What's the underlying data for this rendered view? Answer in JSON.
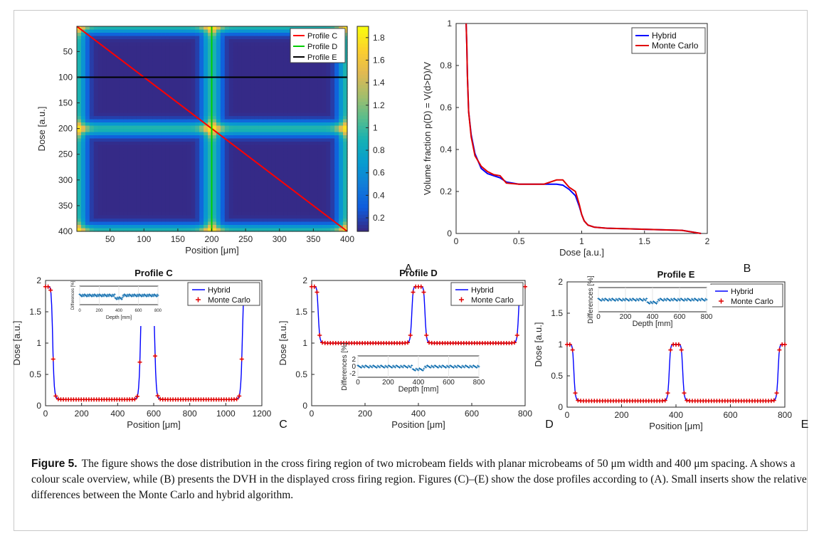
{
  "figure": {
    "label": "Figure 5.",
    "caption": "The figure shows the dose distribution in the cross firing region of two microbeam fields with planar microbeams of 50 μm width and 400 μm spacing. A shows a colour scale overview, while (B) presents the DVH in the displayed cross firing region. Figures (C)–(E) show the dose profiles according to (A). Small inserts show the relative differences between the Monte Carlo and hybrid algorithm."
  },
  "colors": {
    "hybrid": "#0000ff",
    "montecarlo": "#e00000",
    "profileC": "#ff0000",
    "profileD": "#00cc00",
    "profileE": "#000000",
    "insert": "#1f77b4"
  },
  "chart_data": [
    {
      "id": "A",
      "panel_letter": "A",
      "type": "heatmap",
      "xlabel": "Position [μm]",
      "ylabel": "Dose [a.u.]",
      "xlim": [
        1,
        400
      ],
      "ylim": [
        1,
        400
      ],
      "xticks": [
        50,
        100,
        150,
        200,
        250,
        300,
        350,
        400
      ],
      "yticks": [
        50,
        100,
        150,
        200,
        250,
        300,
        350,
        400
      ],
      "colorbar": {
        "range": [
          0.08,
          1.9
        ],
        "ticks": [
          0.2,
          0.4,
          0.6,
          0.8,
          1,
          1.2,
          1.4,
          1.6,
          1.8
        ]
      },
      "beam_centers_x": [
        1,
        200,
        400
      ],
      "beam_centers_y": [
        1,
        200,
        400
      ],
      "legend": [
        "Profile C",
        "Profile D",
        "Profile E"
      ],
      "legend_position": "top-right",
      "lines": [
        {
          "name": "Profile C",
          "color": "#ff0000",
          "x": [
            1,
            400
          ],
          "y": [
            1,
            400
          ]
        },
        {
          "name": "Profile D",
          "color": "#00cc00",
          "x": [
            200,
            200
          ],
          "y": [
            1,
            400
          ]
        },
        {
          "name": "Profile E",
          "color": "#000000",
          "x": [
            1,
            400
          ],
          "y": [
            100,
            100
          ]
        }
      ]
    },
    {
      "id": "B",
      "panel_letter": "B",
      "type": "line",
      "xlabel": "Dose [a.u.]",
      "ylabel": "Volume fraction p(D) = V(d>D)/V",
      "xlim": [
        0,
        2
      ],
      "ylim": [
        0,
        1
      ],
      "xticks": [
        0,
        0.5,
        1,
        1.5,
        2
      ],
      "yticks": [
        0,
        0.2,
        0.4,
        0.6,
        0.8,
        1
      ],
      "legend_position": "top-right",
      "series": [
        {
          "name": "Hybrid",
          "color": "#0000ff",
          "x": [
            0.08,
            0.085,
            0.09,
            0.1,
            0.12,
            0.15,
            0.2,
            0.25,
            0.3,
            0.35,
            0.4,
            0.5,
            0.6,
            0.7,
            0.8,
            0.85,
            0.9,
            0.95,
            0.98,
            1.0,
            1.02,
            1.05,
            1.1,
            1.2,
            1.5,
            1.8,
            1.95
          ],
          "y": [
            1.0,
            0.9,
            0.75,
            0.58,
            0.47,
            0.38,
            0.31,
            0.285,
            0.275,
            0.265,
            0.245,
            0.235,
            0.235,
            0.235,
            0.235,
            0.23,
            0.21,
            0.18,
            0.13,
            0.09,
            0.06,
            0.04,
            0.03,
            0.025,
            0.02,
            0.015,
            0.0
          ]
        },
        {
          "name": "Monte Carlo",
          "color": "#e00000",
          "x": [
            0.08,
            0.085,
            0.09,
            0.1,
            0.12,
            0.15,
            0.2,
            0.25,
            0.3,
            0.35,
            0.4,
            0.5,
            0.6,
            0.7,
            0.8,
            0.85,
            0.9,
            0.95,
            0.98,
            1.0,
            1.02,
            1.05,
            1.1,
            1.2,
            1.5,
            1.8,
            1.95
          ],
          "y": [
            1.0,
            0.9,
            0.75,
            0.58,
            0.46,
            0.37,
            0.32,
            0.295,
            0.28,
            0.275,
            0.24,
            0.235,
            0.235,
            0.235,
            0.255,
            0.255,
            0.22,
            0.2,
            0.14,
            0.09,
            0.06,
            0.04,
            0.03,
            0.025,
            0.02,
            0.015,
            0.0
          ]
        }
      ],
      "legend": [
        "Hybrid",
        "Monte Carlo"
      ]
    },
    {
      "id": "C",
      "panel_letter": "C",
      "type": "line",
      "title": "Profile C",
      "xlabel": "Position [μm]",
      "ylabel": "Dose [a.u.]",
      "xlim": [
        0,
        1200
      ],
      "ylim": [
        0,
        2
      ],
      "xticks": [
        0,
        200,
        400,
        600,
        800,
        1000,
        1200
      ],
      "yticks": [
        0,
        0.5,
        1,
        1.5,
        2
      ],
      "legend": [
        "Hybrid",
        "Monte Carlo"
      ],
      "legend_position": "top-right",
      "profile": {
        "peaks": [
          {
            "c": 0,
            "w": 80,
            "h": 1.9
          },
          {
            "c": 566,
            "w": 80,
            "h": 1.9
          },
          {
            "c": 1131,
            "w": 80,
            "h": 1.9
          }
        ],
        "valley": 0.1,
        "xmax": 1131
      },
      "inset": {
        "xlabel": "Depth [mm]",
        "ylabel": "Differences [%]",
        "xlim": [
          0,
          800
        ],
        "xticks": [
          0,
          200,
          400,
          600,
          800
        ],
        "ylim": [
          -2,
          2
        ]
      }
    },
    {
      "id": "D",
      "panel_letter": "D",
      "type": "line",
      "title": "Profile D",
      "xlabel": "Position [μm]",
      "ylabel": "Dose [a.u.]",
      "xlim": [
        0,
        800
      ],
      "ylim": [
        0,
        2
      ],
      "xticks": [
        0,
        200,
        400,
        600,
        800
      ],
      "yticks": [
        0,
        0.5,
        1,
        1.5,
        2
      ],
      "legend": [
        "Hybrid",
        "Monte Carlo"
      ],
      "legend_position": "top-right",
      "profile": {
        "peaks": [
          {
            "c": 0,
            "w": 50,
            "h": 1.9
          },
          {
            "c": 400,
            "w": 50,
            "h": 1.9
          },
          {
            "c": 800,
            "w": 50,
            "h": 1.9
          }
        ],
        "valley": 1.0,
        "xmax": 800
      },
      "inset": {
        "xlabel": "Depth [mm]",
        "ylabel": "Differences [%]",
        "xlim": [
          0,
          800
        ],
        "xticks": [
          0,
          200,
          400,
          600,
          800
        ],
        "ylim": [
          -3,
          3
        ],
        "yticks": [
          -2,
          0,
          2
        ]
      }
    },
    {
      "id": "E",
      "panel_letter": "E",
      "type": "line",
      "title": "Profile E",
      "xlabel": "Position [μm]",
      "ylabel": "Dose [a.u.]",
      "xlim": [
        0,
        800
      ],
      "ylim": [
        0,
        2
      ],
      "xticks": [
        0,
        200,
        400,
        600,
        800
      ],
      "yticks": [
        0,
        0.5,
        1,
        1.5,
        2
      ],
      "legend": [
        "Hybrid",
        "Monte Carlo"
      ],
      "legend_position": "top-right",
      "profile": {
        "peaks": [
          {
            "c": 0,
            "w": 50,
            "h": 1.0
          },
          {
            "c": 400,
            "w": 50,
            "h": 1.0
          },
          {
            "c": 800,
            "w": 50,
            "h": 1.0
          }
        ],
        "valley": 0.1,
        "xmax": 800
      },
      "inset": {
        "xlabel": "Depth [mm]",
        "ylabel": "Differences [%]",
        "xlim": [
          0,
          800
        ],
        "xticks": [
          0,
          200,
          400,
          600,
          800
        ],
        "ylim": [
          -3,
          3
        ]
      }
    }
  ]
}
